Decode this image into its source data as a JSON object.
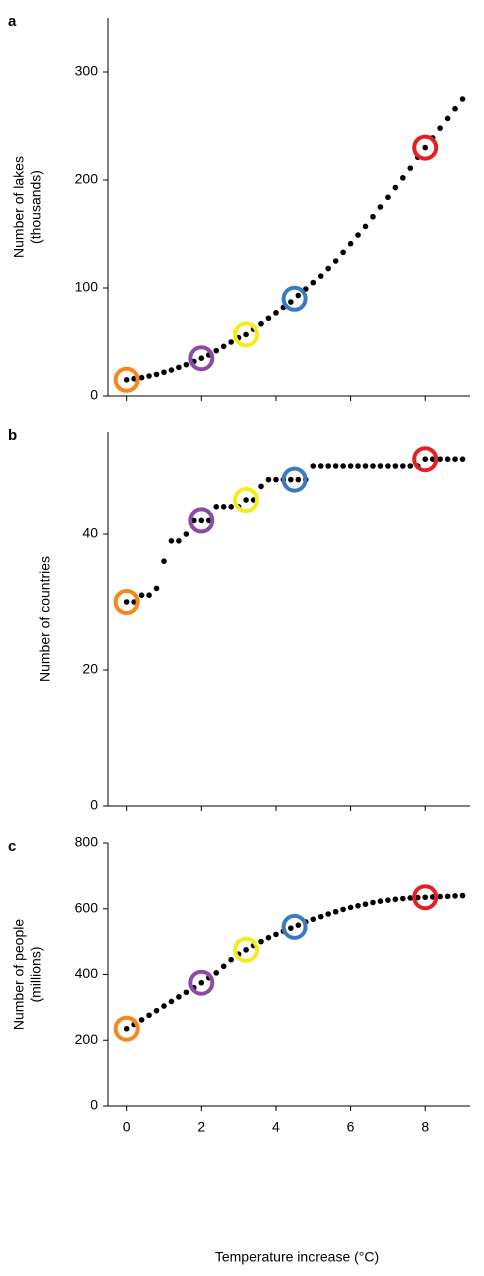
{
  "chart_data": [
    {
      "type": "scatter",
      "panel_label": "a",
      "ylabel": [
        "Number of lakes",
        "(thousands)"
      ],
      "x": [
        0,
        0.2,
        0.4,
        0.6,
        0.8,
        1,
        1.2,
        1.4,
        1.6,
        1.8,
        2,
        2.2,
        2.4,
        2.6,
        2.8,
        3,
        3.2,
        3.4,
        3.6,
        3.8,
        4,
        4.2,
        4.4,
        4.6,
        4.8,
        5,
        5.2,
        5.4,
        5.6,
        5.8,
        6,
        6.2,
        6.4,
        6.6,
        6.8,
        7,
        7.2,
        7.4,
        7.6,
        7.8,
        8,
        8.2,
        8.4,
        8.6,
        8.8,
        9
      ],
      "values": [
        15,
        16,
        17,
        18.5,
        20,
        22,
        24,
        26.5,
        29,
        32,
        35,
        38,
        42,
        46,
        50,
        54,
        57,
        62,
        67,
        72,
        77,
        82,
        87,
        93,
        99,
        105,
        111,
        118,
        125,
        133,
        141,
        149,
        157,
        166,
        175,
        184,
        193,
        202,
        211,
        221,
        230,
        239,
        248,
        257,
        266,
        275
      ],
      "color": "#000000",
      "highlight_x": [
        0,
        2,
        3.2,
        4.5,
        8
      ],
      "highlight_values": [
        15,
        35,
        57,
        90,
        230
      ],
      "highlight_colors": [
        "#f7861c",
        "#8e4aa4",
        "#f6ec1c",
        "#3a7bbf",
        "#e31e24"
      ],
      "xlim": [
        -0.5,
        9.2
      ],
      "xticks": [
        0,
        2,
        4,
        6,
        8
      ],
      "xtick_labels": false,
      "ylim": [
        0,
        350
      ],
      "yticks": [
        0,
        100,
        200,
        300
      ]
    },
    {
      "type": "scatter",
      "panel_label": "b",
      "ylabel": [
        "Number of countries"
      ],
      "x": [
        0,
        0.2,
        0.4,
        0.6,
        0.8,
        1,
        1.2,
        1.4,
        1.6,
        1.8,
        2,
        2.2,
        2.4,
        2.6,
        2.8,
        3,
        3.2,
        3.4,
        3.6,
        3.8,
        4,
        4.2,
        4.4,
        4.6,
        4.8,
        5,
        5.2,
        5.4,
        5.6,
        5.8,
        6,
        6.2,
        6.4,
        6.6,
        6.8,
        7,
        7.2,
        7.4,
        7.6,
        7.8,
        8,
        8.2,
        8.4,
        8.6,
        8.8,
        9
      ],
      "values": [
        30,
        30,
        31,
        31,
        32,
        36,
        39,
        39,
        40,
        42,
        42,
        42,
        44,
        44,
        44,
        44,
        45,
        45,
        47,
        48,
        48,
        48,
        48,
        48,
        48,
        50,
        50,
        50,
        50,
        50,
        50,
        50,
        50,
        50,
        50,
        50,
        50,
        50,
        50,
        50,
        51,
        51,
        51,
        51,
        51,
        51
      ],
      "color": "#000000",
      "highlight_x": [
        0,
        2,
        3.2,
        4.5,
        8
      ],
      "highlight_values": [
        30,
        42,
        45,
        48,
        51
      ],
      "highlight_colors": [
        "#f7861c",
        "#8e4aa4",
        "#f6ec1c",
        "#3a7bbf",
        "#e31e24"
      ],
      "xlim": [
        -0.5,
        9.2
      ],
      "xticks": [
        0,
        2,
        4,
        6,
        8
      ],
      "xtick_labels": false,
      "ylim": [
        0,
        55
      ],
      "yticks": [
        0,
        20,
        40
      ]
    },
    {
      "type": "scatter",
      "panel_label": "c",
      "ylabel": [
        "Number of people",
        "(millions)"
      ],
      "xlabel": "Temperature increase (°C)",
      "x": [
        0,
        0.2,
        0.4,
        0.6,
        0.8,
        1,
        1.2,
        1.4,
        1.6,
        1.8,
        2,
        2.2,
        2.4,
        2.6,
        2.8,
        3,
        3.2,
        3.4,
        3.6,
        3.8,
        4,
        4.2,
        4.4,
        4.6,
        4.8,
        5,
        5.2,
        5.4,
        5.6,
        5.8,
        6,
        6.2,
        6.4,
        6.6,
        6.8,
        7,
        7.2,
        7.4,
        7.6,
        7.8,
        8,
        8.2,
        8.4,
        8.6,
        8.8,
        9
      ],
      "values": [
        235,
        248,
        262,
        276,
        290,
        304,
        318,
        332,
        346,
        360,
        375,
        390,
        405,
        425,
        445,
        462,
        475,
        488,
        500,
        512,
        522,
        532,
        541,
        550,
        560,
        568,
        576,
        584,
        591,
        598,
        604,
        609,
        614,
        619,
        623,
        626,
        629,
        631,
        633,
        634,
        635,
        636,
        637,
        638,
        639,
        640
      ],
      "color": "#000000",
      "highlight_x": [
        0,
        2,
        3.2,
        4.5,
        8
      ],
      "highlight_values": [
        235,
        375,
        475,
        545,
        635
      ],
      "highlight_colors": [
        "#f7861c",
        "#8e4aa4",
        "#f6ec1c",
        "#3a7bbf",
        "#e31e24"
      ],
      "xlim": [
        -0.5,
        9.2
      ],
      "xticks": [
        0,
        2,
        4,
        6,
        8
      ],
      "xtick_labels": true,
      "ylim": [
        0,
        800
      ],
      "yticks": [
        0,
        200,
        400,
        600,
        800
      ]
    }
  ]
}
